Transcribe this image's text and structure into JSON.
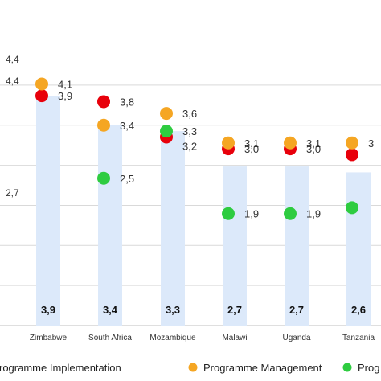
{
  "chart_data": {
    "type": "bar",
    "categories": [
      "Zimbabwe",
      "South Africa",
      "Mozambique",
      "Malawi",
      "Uganda",
      "Tanzania"
    ],
    "bar_values": [
      3.9,
      3.4,
      3.3,
      2.7,
      2.7,
      2.6
    ],
    "bar_labels": [
      "3,9",
      "3,4",
      "3,3",
      "2,7",
      "2,7",
      "2,6"
    ],
    "series": [
      {
        "name": "Programme Implementation",
        "color": "#2ecc40",
        "values": [
          null,
          2.5,
          3.3,
          1.9,
          1.9,
          2.0
        ],
        "labels": [
          "",
          "2,5",
          "3,3",
          "1,9",
          "1,9",
          ""
        ]
      },
      {
        "name": "Programme Management",
        "color": "#f5a623",
        "values": [
          4.1,
          3.4,
          3.6,
          3.1,
          3.1,
          3.1
        ],
        "labels": [
          "4,1",
          "3,4",
          "3,6",
          "3,1",
          "3,1",
          "3"
        ]
      },
      {
        "name": "",
        "color": "#e8000b",
        "values": [
          3.9,
          3.8,
          3.2,
          3.0,
          3.0,
          2.9
        ],
        "labels": [
          "3,9",
          "3,8",
          "3,2",
          "3,0",
          "3,0",
          ""
        ]
      }
    ],
    "legend": {
      "position": "bottom",
      "items": [
        {
          "label": "rogramme Implementation",
          "color": "#2ecc40"
        },
        {
          "label": "Programme Management",
          "color": "#f5a623"
        },
        {
          "label": "Prog",
          "color": "#2ecc40"
        }
      ]
    },
    "y_tick_labels": [
      "4,4",
      "4,4",
      "2,7"
    ],
    "ylim": [
      0,
      4.4
    ],
    "grid": true,
    "bar_color": "#dce9fa",
    "grid_color": "#d9d9d9"
  }
}
